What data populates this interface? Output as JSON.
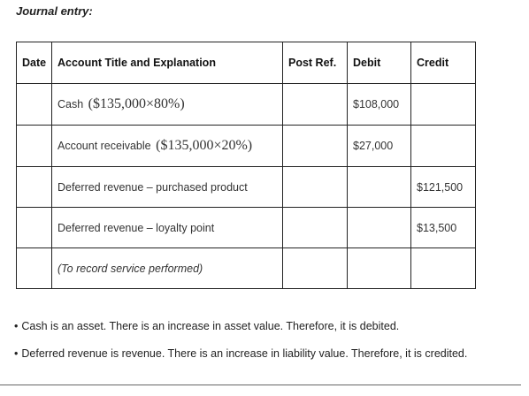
{
  "heading": "Journal entry:",
  "table": {
    "headers": {
      "date": "Date",
      "account": "Account Title and Explanation",
      "post_ref": "Post Ref.",
      "debit": "Debit",
      "credit": "Credit"
    },
    "rows": [
      {
        "date": "",
        "account": "Cash",
        "formula": "($135,000×80%)",
        "post_ref": "",
        "debit": "$108,000",
        "credit": ""
      },
      {
        "date": "",
        "account": "Account receivable",
        "formula": "($135,000×20%)",
        "post_ref": "",
        "debit": "$27,000",
        "credit": ""
      },
      {
        "date": "",
        "account": "Deferred revenue – purchased product",
        "formula": "",
        "post_ref": "",
        "debit": "",
        "credit": "$121,500"
      },
      {
        "date": "",
        "account": "Deferred revenue – loyalty point",
        "formula": "",
        "post_ref": "",
        "debit": "",
        "credit": "$13,500"
      },
      {
        "date": "",
        "account": "(To record service performed)",
        "formula": "",
        "post_ref": "",
        "debit": "",
        "credit": ""
      }
    ]
  },
  "notes": [
    {
      "bullet": "•",
      "text": "Cash is an asset. There is an increase in asset value. Therefore, it is debited."
    },
    {
      "bullet": "•",
      "text": "Deferred revenue is revenue. There is an increase in liability value. Therefore, it is credited."
    }
  ]
}
